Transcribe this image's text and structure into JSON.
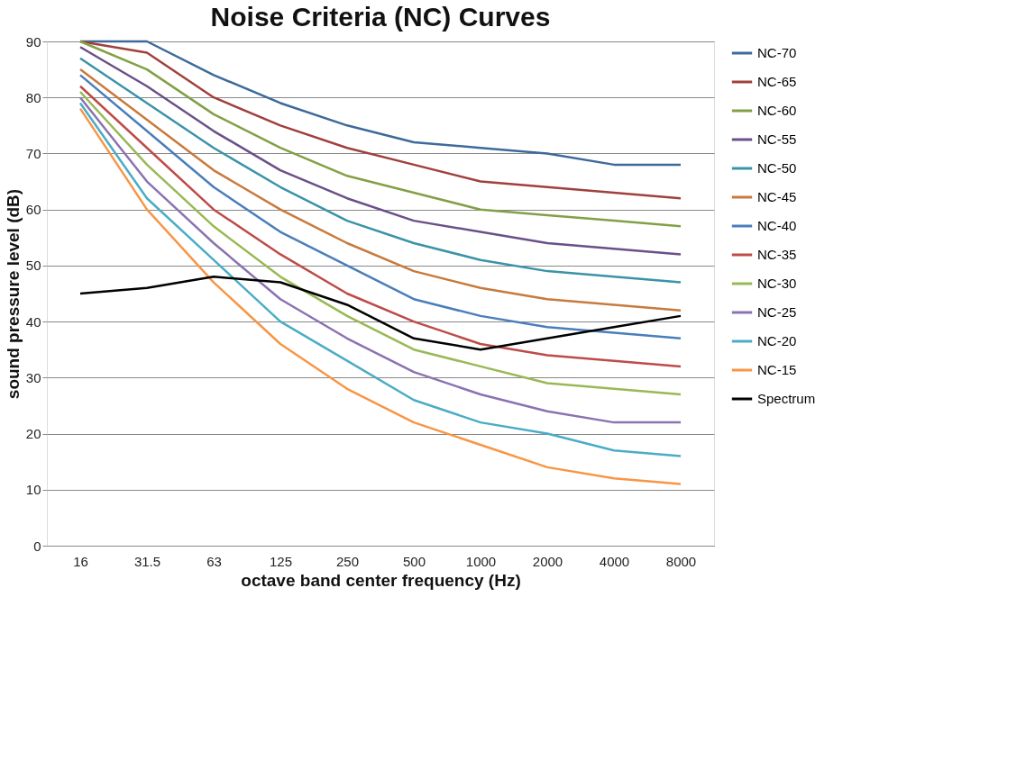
{
  "chart_data": {
    "type": "line",
    "title": "Noise Criteria (NC) Curves",
    "xlabel": "octave band center frequency (Hz)",
    "ylabel": "sound pressure level (dB)",
    "categories": [
      "16",
      "31.5",
      "63",
      "125",
      "250",
      "500",
      "1000",
      "2000",
      "4000",
      "8000"
    ],
    "ylim": [
      0,
      90
    ],
    "yticks": [
      0,
      10,
      20,
      30,
      40,
      50,
      60,
      70,
      80,
      90
    ],
    "grid": "y",
    "legend": "right",
    "marker": "none",
    "line_style": "solid",
    "series": [
      {
        "name": "NC-70",
        "color": "#3e6a9a",
        "values": [
          90,
          90,
          84,
          79,
          75,
          72,
          71,
          70,
          68,
          68
        ]
      },
      {
        "name": "NC-65",
        "color": "#a0403d",
        "values": [
          90,
          88,
          80,
          75,
          71,
          68,
          65,
          64,
          63,
          62
        ]
      },
      {
        "name": "NC-60",
        "color": "#82a046",
        "values": [
          90,
          85,
          77,
          71,
          66,
          63,
          60,
          59,
          58,
          57
        ]
      },
      {
        "name": "NC-55",
        "color": "#6a5088",
        "values": [
          89,
          82,
          74,
          67,
          62,
          58,
          56,
          54,
          53,
          52
        ]
      },
      {
        "name": "NC-50",
        "color": "#3a93a8",
        "values": [
          87,
          79,
          71,
          64,
          58,
          54,
          51,
          49,
          48,
          47
        ]
      },
      {
        "name": "NC-45",
        "color": "#c87a3c",
        "values": [
          85,
          76,
          67,
          60,
          54,
          49,
          46,
          44,
          43,
          42
        ]
      },
      {
        "name": "NC-40",
        "color": "#4a7ebb",
        "values": [
          84,
          74,
          64,
          56,
          50,
          44,
          41,
          39,
          38,
          37
        ]
      },
      {
        "name": "NC-35",
        "color": "#be4b48",
        "values": [
          82,
          71,
          60,
          52,
          45,
          40,
          36,
          34,
          33,
          32
        ]
      },
      {
        "name": "NC-30",
        "color": "#98b954",
        "values": [
          81,
          68,
          57,
          48,
          41,
          35,
          32,
          29,
          28,
          27
        ]
      },
      {
        "name": "NC-25",
        "color": "#8b72b0",
        "values": [
          80,
          65,
          54,
          44,
          37,
          31,
          27,
          24,
          22,
          22
        ]
      },
      {
        "name": "NC-20",
        "color": "#4bacc6",
        "values": [
          79,
          62,
          51,
          40,
          33,
          26,
          22,
          20,
          17,
          16
        ]
      },
      {
        "name": "NC-15",
        "color": "#f79646",
        "values": [
          78,
          60,
          47,
          36,
          28,
          22,
          18,
          14,
          12,
          11
        ]
      },
      {
        "name": "Spectrum",
        "color": "#000000",
        "values": [
          45,
          46,
          48,
          47,
          43,
          37,
          35,
          37,
          39,
          41
        ]
      }
    ]
  }
}
